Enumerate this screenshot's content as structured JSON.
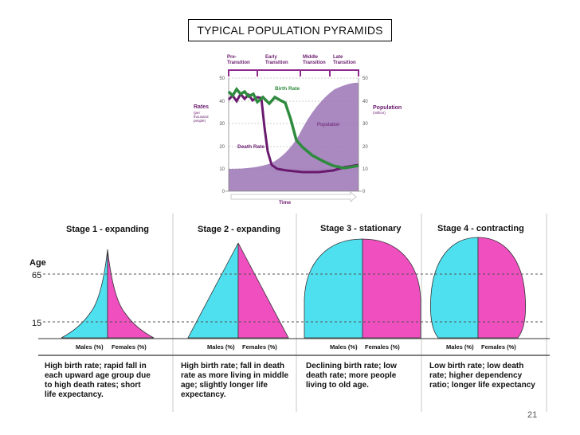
{
  "slide": {
    "title": "TYPICAL POPULATION PYRAMIDS",
    "page_number": "21"
  },
  "transition_chart": {
    "phases": [
      "Pre-\nTransition",
      "Early\nTransition",
      "Middle\nTransition",
      "Late\nTransition"
    ],
    "left_axis": {
      "label": "Rates",
      "sublabel": "(per\nthousand\npeople)",
      "ticks": [
        "0",
        "10",
        "20",
        "30",
        "40",
        "50"
      ]
    },
    "right_axis": {
      "label": "Population",
      "sublabel": "(million)",
      "ticks": [
        "0",
        "10",
        "20",
        "30",
        "40",
        "50"
      ]
    },
    "series_labels": {
      "birth": "Birth Rate",
      "death": "Death Rate",
      "population": "Population"
    },
    "time_label": "Time",
    "colors": {
      "birth": "#2e8b3e",
      "death": "#6a1a6e",
      "population": "#9a74b0",
      "band": "#8e2a8e"
    }
  },
  "pyramids": {
    "age_label": "Age",
    "age_ticks": [
      "65",
      "15"
    ],
    "colors": {
      "male": "#4fe0f0",
      "female": "#f04fc0"
    },
    "stages": [
      {
        "title": "Stage 1 - expanding",
        "males": "Males (%)",
        "females": "Females (%)",
        "description": [
          "High birth rate; rapid fall in",
          "each upward age group due",
          "to high death rates; short",
          "life expectancy."
        ]
      },
      {
        "title": "Stage 2 - expanding",
        "males": "Males (%)",
        "females": "Females (%)",
        "description": [
          "High birth rate; fall in death",
          "rate as more living in middle",
          "age; slightly longer life",
          "expectancy."
        ]
      },
      {
        "title": "Stage 3 - stationary",
        "males": "Males (%)",
        "females": "Females (%)",
        "description": [
          "Declining birth rate; low",
          "death rate; more people",
          "living to old age."
        ]
      },
      {
        "title": "Stage 4 - contracting",
        "males": "Males (%)",
        "females": "Females (%)",
        "description": [
          "Low birth rate; low death",
          "rate; higher dependency",
          "ratio; longer life expectancy"
        ]
      }
    ]
  }
}
